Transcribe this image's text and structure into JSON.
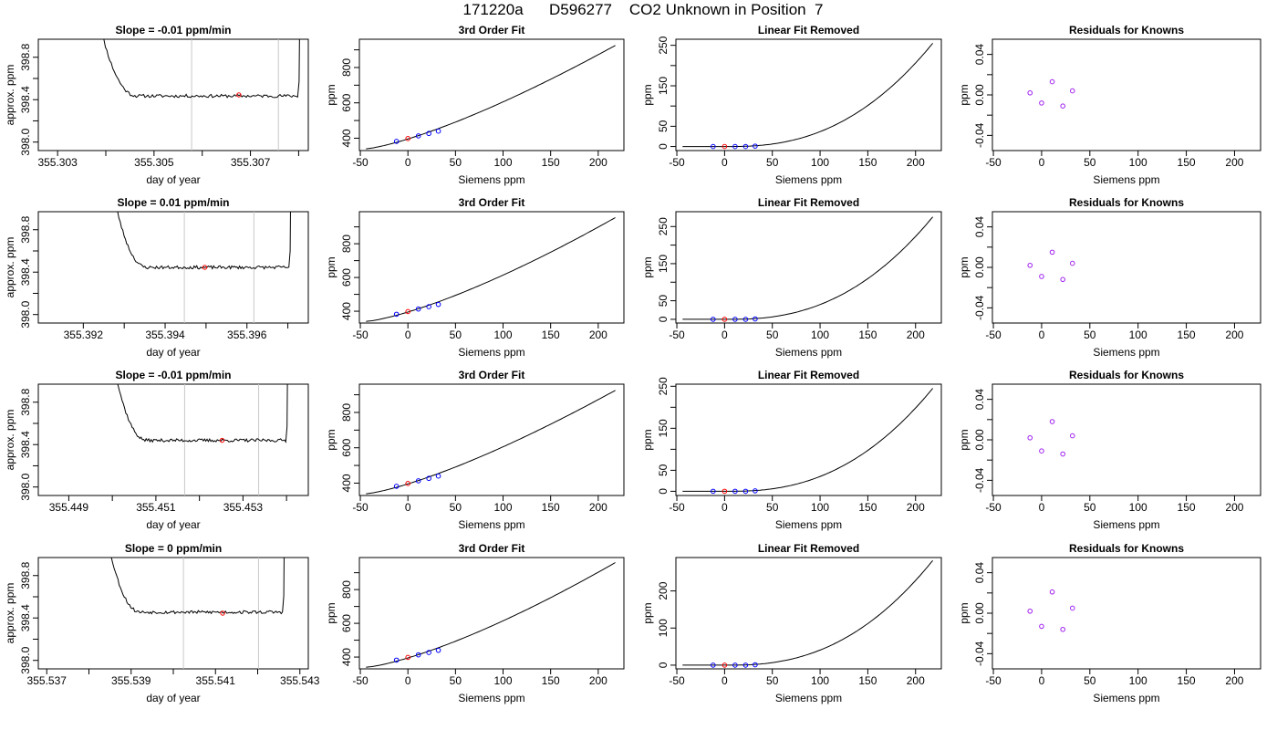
{
  "page": {
    "title": "171220a      D596277    CO2 Unknown in Position  7"
  },
  "colors": {
    "axes": "#000000",
    "trace": "#000000",
    "window_lines": "#c8c8c8",
    "known_points": "#0000ff",
    "unknown_point": "#ff0000",
    "residual_points": "#a020f0"
  },
  "chart_data": [
    {
      "type": "line",
      "row": 0,
      "col": 0,
      "title": "Slope =  -0.01  ppm/min",
      "xlabel": "day of year",
      "ylabel": "approx. ppm",
      "xlim": [
        355.3026,
        355.3082
      ],
      "ylim": [
        397.92,
        398.97
      ],
      "xticks": [
        355.303,
        355.304,
        355.305,
        355.306,
        355.307,
        355.308
      ],
      "xtick_labels": [
        "355.303",
        "",
        "355.305",
        "",
        "355.307",
        ""
      ],
      "yticks": [
        398.0,
        398.2,
        398.4,
        398.6,
        398.8
      ],
      "ytick_labels": [
        "398.0",
        "",
        "398.4",
        "",
        "398.8"
      ],
      "vlines": [
        355.30578,
        355.30758
      ],
      "baseline": 398.435,
      "trace_start": 355.30381,
      "trace_end": 355.30807,
      "seed": 11,
      "marker": {
        "x": 355.30676,
        "y": 398.445
      }
    },
    {
      "type": "line",
      "title": "3rd Order Fit",
      "xlabel": "Siemens ppm",
      "ylabel": "ppm",
      "row": 0,
      "col": 1,
      "xlim": [
        -51,
        227
      ],
      "ylim": [
        330,
        960
      ],
      "xticks": [
        -50,
        0,
        50,
        100,
        150,
        200
      ],
      "xtick_labels": [
        "-50",
        "0",
        "50",
        "100",
        "150",
        "200"
      ],
      "yticks": [
        400,
        500,
        600,
        700,
        800,
        900
      ],
      "ytick_labels": [
        "400",
        "",
        "600",
        "",
        "800",
        ""
      ],
      "curve": {
        "x0": -44,
        "x1": 218,
        "y0": 340,
        "y1": 925,
        "exp": 1.32
      },
      "knowns": [
        {
          "x": -12,
          "y": 382
        },
        {
          "x": 11,
          "y": 413
        },
        {
          "x": 22,
          "y": 427
        },
        {
          "x": 32,
          "y": 440
        }
      ],
      "unknown": {
        "x": 0,
        "y": 398
      }
    },
    {
      "type": "line",
      "title": "Linear Fit Removed",
      "xlabel": "Siemens ppm",
      "ylabel": "ppm",
      "row": 0,
      "col": 2,
      "xlim": [
        -51,
        227
      ],
      "ylim": [
        -10,
        265
      ],
      "xticks": [
        -50,
        0,
        50,
        100,
        150,
        200
      ],
      "xtick_labels": [
        "-50",
        "0",
        "50",
        "100",
        "150",
        "200"
      ],
      "yticks": [
        0,
        50,
        100,
        150,
        200,
        250
      ],
      "ytick_labels": [
        "0",
        "50",
        "",
        "150",
        "",
        "250"
      ],
      "curve": {
        "x0": -44,
        "x1": 218,
        "ymax": 255
      },
      "knowns": [
        {
          "x": -12,
          "y": 0
        },
        {
          "x": 11,
          "y": 0
        },
        {
          "x": 22,
          "y": 0
        },
        {
          "x": 32,
          "y": 1
        }
      ],
      "unknown": {
        "x": 0,
        "y": 0
      }
    },
    {
      "type": "scatter",
      "title": "Residuals for Knowns",
      "xlabel": "Siemens ppm",
      "ylabel": "ppm",
      "row": 0,
      "col": 3,
      "xlim": [
        -51,
        227
      ],
      "ylim": [
        -0.055,
        0.055
      ],
      "xticks": [
        -50,
        0,
        50,
        100,
        150,
        200
      ],
      "xtick_labels": [
        "-50",
        "0",
        "50",
        "100",
        "150",
        "200"
      ],
      "yticks": [
        -0.04,
        -0.02,
        0.0,
        0.02,
        0.04
      ],
      "ytick_labels": [
        "-0.04",
        "",
        "0.00",
        "",
        "0.04"
      ],
      "points": [
        {
          "x": -12,
          "y": 0.002
        },
        {
          "x": 0,
          "y": -0.008
        },
        {
          "x": 11,
          "y": 0.013
        },
        {
          "x": 22,
          "y": -0.011
        },
        {
          "x": 32,
          "y": 0.004
        }
      ]
    },
    {
      "type": "line",
      "row": 1,
      "col": 0,
      "title": "Slope =  0.01  ppm/min",
      "xlabel": "day of year",
      "ylabel": "approx. ppm",
      "xlim": [
        355.3909,
        355.3975
      ],
      "ylim": [
        397.92,
        398.97
      ],
      "xticks": [
        355.392,
        355.393,
        355.394,
        355.395,
        355.396,
        355.397
      ],
      "xtick_labels": [
        "355.392",
        "",
        "355.394",
        "",
        "355.396",
        ""
      ],
      "yticks": [
        398.0,
        398.2,
        398.4,
        398.6,
        398.8
      ],
      "ytick_labels": [
        "398.0",
        "",
        "398.4",
        "",
        "398.8"
      ],
      "vlines": [
        355.39447,
        355.39617
      ],
      "baseline": 398.445,
      "trace_start": 355.39268,
      "trace_end": 355.39712,
      "seed": 23,
      "marker": {
        "x": 355.39497,
        "y": 398.445
      }
    },
    {
      "type": "line",
      "title": "3rd Order Fit",
      "xlabel": "Siemens ppm",
      "ylabel": "ppm",
      "row": 1,
      "col": 1,
      "xlim": [
        -51,
        227
      ],
      "ylim": [
        330,
        990
      ],
      "xticks": [
        -50,
        0,
        50,
        100,
        150,
        200
      ],
      "xtick_labels": [
        "-50",
        "0",
        "50",
        "100",
        "150",
        "200"
      ],
      "yticks": [
        400,
        500,
        600,
        700,
        800,
        900
      ],
      "ytick_labels": [
        "400",
        "",
        "600",
        "",
        "800",
        ""
      ],
      "curve": {
        "x0": -44,
        "x1": 218,
        "y0": 340,
        "y1": 955,
        "exp": 1.35
      },
      "knowns": [
        {
          "x": -12,
          "y": 382
        },
        {
          "x": 11,
          "y": 413
        },
        {
          "x": 22,
          "y": 427
        },
        {
          "x": 32,
          "y": 440
        }
      ],
      "unknown": {
        "x": 0,
        "y": 398
      }
    },
    {
      "type": "line",
      "title": "Linear Fit Removed",
      "xlabel": "Siemens ppm",
      "ylabel": "ppm",
      "row": 1,
      "col": 2,
      "xlim": [
        -51,
        227
      ],
      "ylim": [
        -10,
        290
      ],
      "xticks": [
        -50,
        0,
        50,
        100,
        150,
        200
      ],
      "xtick_labels": [
        "-50",
        "0",
        "50",
        "100",
        "150",
        "200"
      ],
      "yticks": [
        0,
        50,
        100,
        150,
        200,
        250
      ],
      "ytick_labels": [
        "0",
        "50",
        "",
        "150",
        "",
        "250"
      ],
      "curve": {
        "x0": -44,
        "x1": 218,
        "ymax": 276
      },
      "knowns": [
        {
          "x": -12,
          "y": 0
        },
        {
          "x": 11,
          "y": 0
        },
        {
          "x": 22,
          "y": 0
        },
        {
          "x": 32,
          "y": 1
        }
      ],
      "unknown": {
        "x": 0,
        "y": 0
      }
    },
    {
      "type": "scatter",
      "title": "Residuals for Knowns",
      "xlabel": "Siemens ppm",
      "ylabel": "ppm",
      "row": 1,
      "col": 3,
      "xlim": [
        -51,
        227
      ],
      "ylim": [
        -0.055,
        0.055
      ],
      "xticks": [
        -50,
        0,
        50,
        100,
        150,
        200
      ],
      "xtick_labels": [
        "-50",
        "0",
        "50",
        "100",
        "150",
        "200"
      ],
      "yticks": [
        -0.04,
        -0.02,
        0.0,
        0.02,
        0.04
      ],
      "ytick_labels": [
        "-0.04",
        "",
        "0.00",
        "",
        "0.04"
      ],
      "points": [
        {
          "x": -12,
          "y": 0.002
        },
        {
          "x": 0,
          "y": -0.009
        },
        {
          "x": 11,
          "y": 0.015
        },
        {
          "x": 22,
          "y": -0.012
        },
        {
          "x": 32,
          "y": 0.004
        }
      ]
    },
    {
      "type": "line",
      "row": 2,
      "col": 0,
      "title": "Slope =  -0.01  ppm/min",
      "xlabel": "day of year",
      "ylabel": "approx. ppm",
      "xlim": [
        355.4483,
        355.4545
      ],
      "ylim": [
        397.92,
        398.97
      ],
      "xticks": [
        355.449,
        355.45,
        355.451,
        355.452,
        355.453,
        355.454
      ],
      "xtick_labels": [
        "355.449",
        "",
        "355.451",
        "",
        "355.453",
        ""
      ],
      "yticks": [
        398.0,
        398.2,
        398.4,
        398.6,
        398.8
      ],
      "ytick_labels": [
        "398.0",
        "",
        "398.4",
        "",
        "398.8"
      ],
      "vlines": [
        355.45166,
        355.45336
      ],
      "baseline": 398.44,
      "trace_start": 355.44999,
      "trace_end": 355.45407,
      "seed": 37,
      "marker": {
        "x": 355.45252,
        "y": 398.44
      }
    },
    {
      "type": "line",
      "title": "3rd Order Fit",
      "xlabel": "Siemens ppm",
      "ylabel": "ppm",
      "row": 2,
      "col": 1,
      "xlim": [
        -51,
        227
      ],
      "ylim": [
        330,
        960
      ],
      "xticks": [
        -50,
        0,
        50,
        100,
        150,
        200
      ],
      "xtick_labels": [
        "-50",
        "0",
        "50",
        "100",
        "150",
        "200"
      ],
      "yticks": [
        400,
        500,
        600,
        700,
        800,
        900
      ],
      "ytick_labels": [
        "400",
        "",
        "600",
        "",
        "800",
        ""
      ],
      "curve": {
        "x0": -44,
        "x1": 218,
        "y0": 340,
        "y1": 925,
        "exp": 1.32
      },
      "knowns": [
        {
          "x": -12,
          "y": 382
        },
        {
          "x": 11,
          "y": 413
        },
        {
          "x": 22,
          "y": 427
        },
        {
          "x": 32,
          "y": 440
        }
      ],
      "unknown": {
        "x": 0,
        "y": 398
      }
    },
    {
      "type": "line",
      "title": "Linear Fit Removed",
      "xlabel": "Siemens ppm",
      "ylabel": "ppm",
      "row": 2,
      "col": 2,
      "xlim": [
        -51,
        227
      ],
      "ylim": [
        -10,
        255
      ],
      "xticks": [
        -50,
        0,
        50,
        100,
        150,
        200
      ],
      "xtick_labels": [
        "-50",
        "0",
        "50",
        "100",
        "150",
        "200"
      ],
      "yticks": [
        0,
        50,
        100,
        150,
        200,
        250
      ],
      "ytick_labels": [
        "0",
        "50",
        "",
        "150",
        "",
        "250"
      ],
      "curve": {
        "x0": -44,
        "x1": 218,
        "ymax": 245
      },
      "knowns": [
        {
          "x": -12,
          "y": 0
        },
        {
          "x": 11,
          "y": 0
        },
        {
          "x": 22,
          "y": 0
        },
        {
          "x": 32,
          "y": 1
        }
      ],
      "unknown": {
        "x": 0,
        "y": 0
      }
    },
    {
      "type": "scatter",
      "title": "Residuals for Knowns",
      "xlabel": "Siemens ppm",
      "ylabel": "ppm",
      "row": 2,
      "col": 3,
      "xlim": [
        -51,
        227
      ],
      "ylim": [
        -0.055,
        0.055
      ],
      "xticks": [
        -50,
        0,
        50,
        100,
        150,
        200
      ],
      "xtick_labels": [
        "-50",
        "0",
        "50",
        "100",
        "150",
        "200"
      ],
      "yticks": [
        -0.04,
        -0.02,
        0.0,
        0.02,
        0.04
      ],
      "ytick_labels": [
        "-0.04",
        "",
        "0.00",
        "",
        "0.04"
      ],
      "points": [
        {
          "x": -12,
          "y": 0.002
        },
        {
          "x": 0,
          "y": -0.011
        },
        {
          "x": 11,
          "y": 0.018
        },
        {
          "x": 22,
          "y": -0.014
        },
        {
          "x": 32,
          "y": 0.004
        }
      ]
    },
    {
      "type": "line",
      "row": 3,
      "col": 0,
      "title": "Slope =  0  ppm/min",
      "xlabel": "day of year",
      "ylabel": "approx. ppm",
      "xlim": [
        355.5368,
        355.5432
      ],
      "ylim": [
        397.92,
        398.97
      ],
      "xticks": [
        355.537,
        355.538,
        355.539,
        355.54,
        355.541,
        355.542,
        355.543
      ],
      "xtick_labels": [
        "355.537",
        "",
        "355.539",
        "",
        "355.541",
        "",
        "355.543"
      ],
      "yticks": [
        398.0,
        398.2,
        398.4,
        398.6,
        398.8
      ],
      "ytick_labels": [
        "398.0",
        "",
        "398.4",
        "",
        "398.8"
      ],
      "vlines": [
        355.54024,
        355.54202
      ],
      "baseline": 398.455,
      "trace_start": 355.53838,
      "trace_end": 355.54268,
      "seed": 53,
      "marker": {
        "x": 355.54117,
        "y": 398.445
      }
    },
    {
      "type": "line",
      "title": "3rd Order Fit",
      "xlabel": "Siemens ppm",
      "ylabel": "ppm",
      "row": 3,
      "col": 1,
      "xlim": [
        -51,
        227
      ],
      "ylim": [
        330,
        990
      ],
      "xticks": [
        -50,
        0,
        50,
        100,
        150,
        200
      ],
      "xtick_labels": [
        "-50",
        "0",
        "50",
        "100",
        "150",
        "200"
      ],
      "yticks": [
        400,
        500,
        600,
        700,
        800,
        900
      ],
      "ytick_labels": [
        "400",
        "",
        "600",
        "",
        "800",
        ""
      ],
      "curve": {
        "x0": -44,
        "x1": 218,
        "y0": 340,
        "y1": 960,
        "exp": 1.36
      },
      "knowns": [
        {
          "x": -12,
          "y": 382
        },
        {
          "x": 11,
          "y": 413
        },
        {
          "x": 22,
          "y": 427
        },
        {
          "x": 32,
          "y": 440
        }
      ],
      "unknown": {
        "x": 0,
        "y": 398
      }
    },
    {
      "type": "line",
      "title": "Linear Fit Removed",
      "xlabel": "Siemens ppm",
      "ylabel": "ppm",
      "row": 3,
      "col": 2,
      "xlim": [
        -51,
        227
      ],
      "ylim": [
        -10,
        290
      ],
      "xticks": [
        -50,
        0,
        50,
        100,
        150,
        200
      ],
      "xtick_labels": [
        "-50",
        "0",
        "50",
        "100",
        "150",
        "200"
      ],
      "yticks": [
        0,
        100,
        200
      ],
      "ytick_labels": [
        "0",
        "100",
        "200"
      ],
      "curve": {
        "x0": -44,
        "x1": 218,
        "ymax": 282
      },
      "knowns": [
        {
          "x": -12,
          "y": 0
        },
        {
          "x": 11,
          "y": 0
        },
        {
          "x": 22,
          "y": 0
        },
        {
          "x": 32,
          "y": 1
        }
      ],
      "unknown": {
        "x": 0,
        "y": 0
      }
    },
    {
      "type": "scatter",
      "title": "Residuals for Knowns",
      "xlabel": "Siemens ppm",
      "ylabel": "ppm",
      "row": 3,
      "col": 3,
      "xlim": [
        -51,
        227
      ],
      "ylim": [
        -0.055,
        0.055
      ],
      "xticks": [
        -50,
        0,
        50,
        100,
        150,
        200
      ],
      "xtick_labels": [
        "-50",
        "0",
        "50",
        "100",
        "150",
        "200"
      ],
      "yticks": [
        -0.04,
        -0.02,
        0.0,
        0.02,
        0.04
      ],
      "ytick_labels": [
        "-0.04",
        "",
        "0.00",
        "",
        "0.04"
      ],
      "points": [
        {
          "x": -12,
          "y": 0.002
        },
        {
          "x": 0,
          "y": -0.013
        },
        {
          "x": 11,
          "y": 0.021
        },
        {
          "x": 22,
          "y": -0.016
        },
        {
          "x": 32,
          "y": 0.005
        }
      ]
    }
  ]
}
